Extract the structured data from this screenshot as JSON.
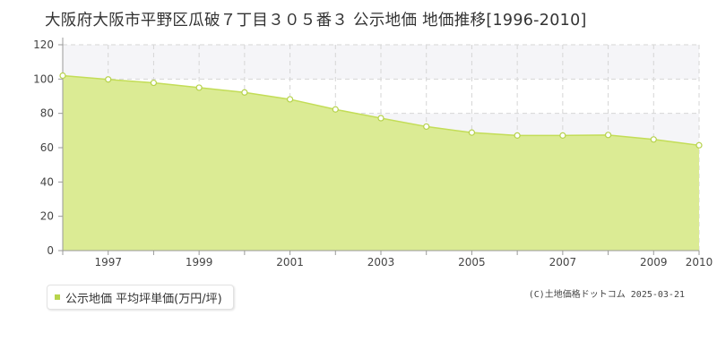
{
  "title": "大阪府大阪市平野区瓜破７丁目３０５番３ 公示地価 地価推移[1996-2010]",
  "legend": {
    "label": "公示地価 平均坪単価(万円/坪)"
  },
  "credit": "(C)土地価格ドットコム 2025-03-21",
  "colors": {
    "fill": "#dbeb94",
    "line": "#c3dd57",
    "marker_fill": "#ffffff",
    "marker_stroke": "#b6d24c",
    "legend_swatch": "#b7d44b",
    "band": "#f5f5f8",
    "grid": "#d6d6d6",
    "axis": "#999999"
  },
  "chart_data": {
    "type": "area",
    "x": [
      1996,
      1997,
      1998,
      1999,
      2000,
      2001,
      2002,
      2003,
      2004,
      2005,
      2006,
      2007,
      2008,
      2009,
      2010
    ],
    "series": [
      {
        "name": "公示地価 平均坪単価(万円/坪)",
        "values": [
          102.0,
          99.8,
          97.8,
          95.0,
          92.2,
          88.2,
          82.3,
          77.2,
          72.3,
          68.8,
          67.1,
          67.1,
          67.4,
          64.8,
          61.4
        ]
      }
    ],
    "xlim": [
      1996,
      2010
    ],
    "ylim": [
      0,
      120
    ],
    "yticks": [
      0,
      20,
      40,
      60,
      80,
      100,
      120
    ],
    "xtick_labels": [
      "1997",
      "1999",
      "2001",
      "2003",
      "2005",
      "2007",
      "2009",
      "2010"
    ],
    "xtick_years": [
      1997,
      1999,
      2001,
      2003,
      2005,
      2007,
      2009,
      2010
    ],
    "grid": true,
    "legend_position": "bottom-left"
  }
}
